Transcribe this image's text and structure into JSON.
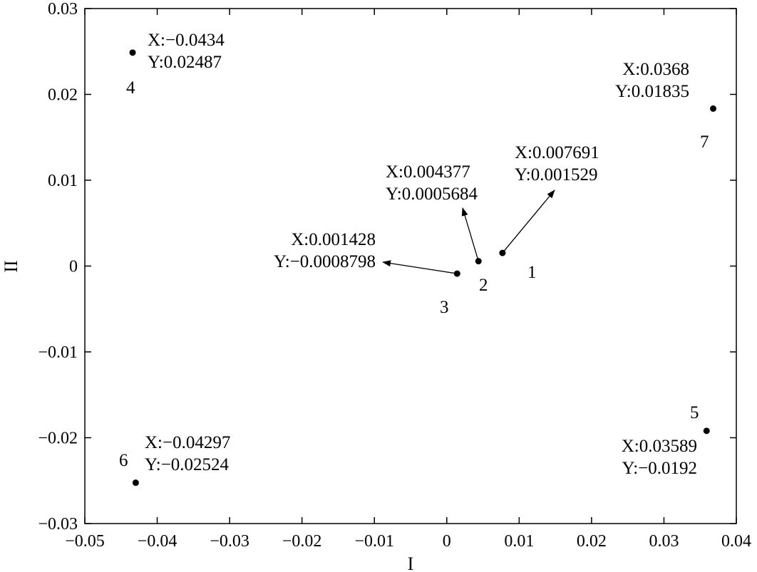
{
  "chart_data": {
    "type": "scatter",
    "title": "",
    "xlabel": "I",
    "ylabel": "II",
    "xlim": [
      -0.05,
      0.04
    ],
    "ylim": [
      -0.03,
      0.03
    ],
    "xticks": [
      -0.05,
      -0.04,
      -0.03,
      -0.02,
      -0.01,
      0,
      0.01,
      0.02,
      0.03,
      0.04
    ],
    "xtick_labels": [
      "−0.05",
      "−0.04",
      "−0.03",
      "−0.02",
      "−0.01",
      "0",
      "0.01",
      "0.02",
      "0.03",
      "0.04"
    ],
    "yticks": [
      0.03,
      0.02,
      0.01,
      0,
      -0.01,
      -0.02,
      -0.03
    ],
    "ytick_labels": [
      "0.03",
      "0.02",
      "0.01",
      "0",
      "−0.01",
      "−0.02",
      "−0.03"
    ],
    "grid": false,
    "points": [
      {
        "id": "1",
        "x": 0.007691,
        "y": 0.001529,
        "x_text": "X:0.007691",
        "y_text": "Y:0.001529",
        "arrow": true
      },
      {
        "id": "2",
        "x": 0.004377,
        "y": 0.0005684,
        "x_text": "X:0.004377",
        "y_text": "Y:0.0005684",
        "arrow": true
      },
      {
        "id": "3",
        "x": 0.001428,
        "y": -0.0008798,
        "x_text": "X:0.001428",
        "y_text": "Y:−0.0008798",
        "arrow": true
      },
      {
        "id": "4",
        "x": -0.0434,
        "y": 0.02487,
        "x_text": "X:−0.0434",
        "y_text": "Y:0.02487",
        "arrow": false
      },
      {
        "id": "5",
        "x": 0.03589,
        "y": -0.0192,
        "x_text": "X:0.03589",
        "y_text": "Y:−0.0192",
        "arrow": false
      },
      {
        "id": "6",
        "x": -0.04297,
        "y": -0.02524,
        "x_text": "X:−0.04297",
        "y_text": "Y:−0.02524",
        "arrow": false
      },
      {
        "id": "7",
        "x": 0.0368,
        "y": 0.01835,
        "x_text": "X:0.0368",
        "y_text": "Y:0.01835",
        "arrow": false
      }
    ]
  }
}
